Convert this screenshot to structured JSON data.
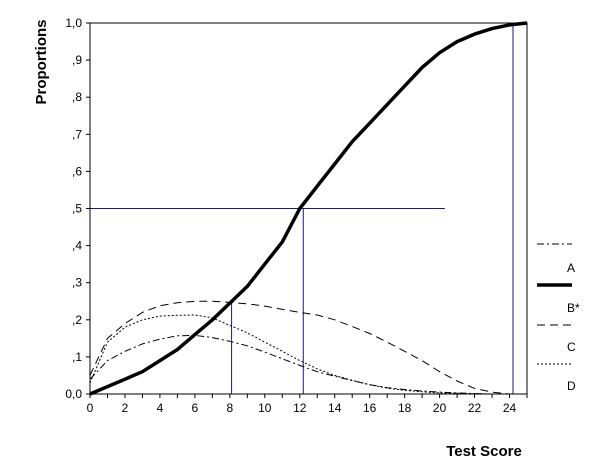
{
  "chart_data": {
    "type": "line",
    "xlabel": "Test Score",
    "ylabel": "Proportions",
    "xlim": [
      0,
      25
    ],
    "ylim": [
      0,
      1.0
    ],
    "x_ticks": [
      0,
      2,
      4,
      6,
      8,
      10,
      12,
      14,
      16,
      18,
      20,
      22,
      24
    ],
    "x_tick_labels": [
      "0",
      "2",
      "4",
      "6",
      "8",
      "10",
      "12",
      "14",
      "16",
      "18",
      "20",
      "22",
      "24"
    ],
    "y_ticks": [
      0,
      0.1,
      0.2,
      0.3,
      0.4,
      0.5,
      0.6,
      0.7,
      0.8,
      0.9,
      1.0
    ],
    "y_tick_labels": [
      "0,0",
      ",1",
      ",2",
      ",3",
      ",4",
      ",5",
      ",6",
      ",7",
      ",8",
      ",9",
      "1,0"
    ],
    "grid": false,
    "legend_position": "right",
    "series": [
      {
        "name": "A",
        "style": "dash-dot",
        "x": [
          0,
          1,
          2,
          3,
          4,
          5,
          6,
          7,
          8,
          9,
          10,
          11,
          12,
          13,
          14,
          15,
          16,
          17,
          18,
          19,
          20,
          21,
          22,
          23,
          24,
          25
        ],
        "values": [
          0.04,
          0.09,
          0.115,
          0.135,
          0.148,
          0.157,
          0.158,
          0.152,
          0.142,
          0.13,
          0.113,
          0.095,
          0.077,
          0.06,
          0.048,
          0.036,
          0.025,
          0.017,
          0.012,
          0.008,
          0.005,
          0.003,
          0.001,
          0.0,
          0.0,
          0.0
        ]
      },
      {
        "name": "B*",
        "style": "thick-solid",
        "x": [
          0,
          1,
          2,
          3,
          4,
          5,
          6,
          7,
          8,
          9,
          10,
          11,
          12,
          13,
          14,
          15,
          16,
          17,
          18,
          19,
          20,
          21,
          22,
          23,
          24,
          25
        ],
        "values": [
          0.0,
          0.02,
          0.04,
          0.06,
          0.09,
          0.12,
          0.16,
          0.2,
          0.245,
          0.29,
          0.35,
          0.41,
          0.5,
          0.56,
          0.62,
          0.68,
          0.73,
          0.78,
          0.83,
          0.88,
          0.92,
          0.95,
          0.97,
          0.985,
          0.995,
          1.0
        ]
      },
      {
        "name": "C",
        "style": "dash",
        "x": [
          0,
          1,
          2,
          3,
          4,
          5,
          6,
          7,
          8,
          9,
          10,
          11,
          12,
          13,
          14,
          15,
          16,
          17,
          18,
          19,
          20,
          21,
          22,
          23,
          24
        ],
        "values": [
          0.05,
          0.15,
          0.19,
          0.22,
          0.238,
          0.246,
          0.25,
          0.25,
          0.247,
          0.243,
          0.237,
          0.228,
          0.22,
          0.213,
          0.2,
          0.182,
          0.163,
          0.14,
          0.115,
          0.09,
          0.06,
          0.035,
          0.015,
          0.005,
          0.0
        ]
      },
      {
        "name": "D",
        "style": "dotted",
        "x": [
          0,
          1,
          2,
          3,
          4,
          5,
          6,
          7,
          8,
          9,
          10,
          11,
          12,
          13,
          14,
          15,
          16,
          17,
          18,
          19,
          20,
          21,
          22,
          23,
          24
        ],
        "values": [
          0.03,
          0.14,
          0.18,
          0.2,
          0.21,
          0.212,
          0.213,
          0.205,
          0.185,
          0.165,
          0.14,
          0.115,
          0.09,
          0.068,
          0.05,
          0.037,
          0.025,
          0.016,
          0.01,
          0.006,
          0.003,
          0.002,
          0.001,
          0.0,
          0.0
        ]
      }
    ],
    "reference_lines": [
      {
        "kind": "horizontal",
        "y": 0.5,
        "x_from": 0,
        "x_to": 20.3
      },
      {
        "kind": "vertical",
        "x": 8.1,
        "y_from": 0,
        "y_to": 0.245
      },
      {
        "kind": "vertical",
        "x": 12.2,
        "y_from": 0,
        "y_to": 0.5
      },
      {
        "kind": "vertical",
        "x": 24.2,
        "y_from": 0,
        "y_to": 1.0
      }
    ],
    "colors": {
      "axis": "#000000",
      "reference": "#1a1a7a",
      "series": "#000000"
    }
  }
}
